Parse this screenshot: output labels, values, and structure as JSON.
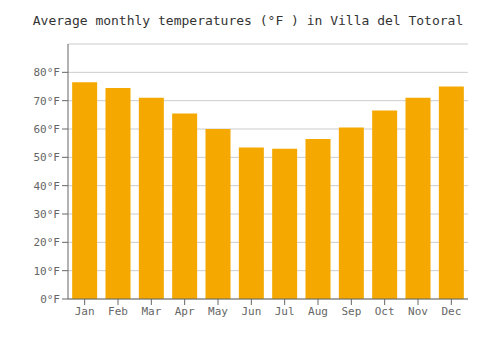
{
  "chart_data": {
    "type": "bar",
    "title": "Average monthly temperatures (°F ) in Villa del Totoral",
    "categories": [
      "Jan",
      "Feb",
      "Mar",
      "Apr",
      "May",
      "Jun",
      "Jul",
      "Aug",
      "Sep",
      "Oct",
      "Nov",
      "Dec"
    ],
    "values": [
      76.5,
      74.5,
      71,
      65.5,
      60,
      53.5,
      53,
      56.5,
      60.5,
      66.5,
      71,
      75
    ],
    "color": "#F5A800",
    "ylim": [
      0,
      90
    ],
    "yticks": [
      {
        "value": 0,
        "label": "0°F"
      },
      {
        "value": 10,
        "label": "10°F"
      },
      {
        "value": 20,
        "label": "20°F"
      },
      {
        "value": 30,
        "label": "30°F"
      },
      {
        "value": 40,
        "label": "40°F"
      },
      {
        "value": 50,
        "label": "50°F"
      },
      {
        "value": 60,
        "label": "60°F"
      },
      {
        "value": 70,
        "label": "70°F"
      },
      {
        "value": 80,
        "label": "80°F"
      }
    ],
    "grid": true
  }
}
